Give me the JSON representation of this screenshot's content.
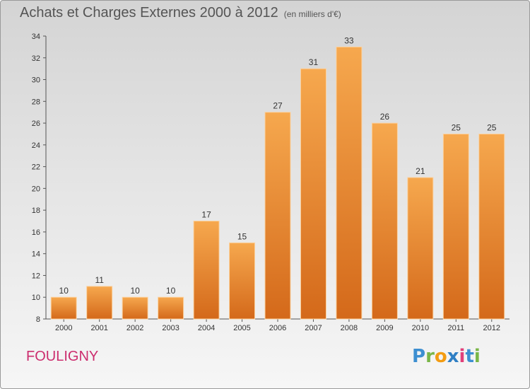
{
  "title": "Achats et Charges Externes 2000 à 2012",
  "subtitle": "(en milliers d'€)",
  "city": "FOULIGNY",
  "logo": {
    "letters": [
      "P",
      "r",
      "o",
      "x",
      "i",
      "t",
      "i"
    ]
  },
  "colors": {
    "bar_light": "#f6a84e",
    "bar_dark": "#d4691a",
    "city": "#cc2d6e"
  },
  "chart_data": {
    "type": "bar",
    "title": "Achats et Charges Externes 2000 à 2012",
    "subtitle": "(en milliers d'€)",
    "categories": [
      "2000",
      "2001",
      "2002",
      "2003",
      "2004",
      "2005",
      "2006",
      "2007",
      "2008",
      "2009",
      "2010",
      "2011",
      "2012"
    ],
    "values": [
      10,
      11,
      10,
      10,
      17,
      15,
      27,
      31,
      33,
      26,
      21,
      25,
      25
    ],
    "ylim": [
      8,
      34
    ],
    "yticks": [
      8,
      10,
      12,
      14,
      16,
      18,
      20,
      22,
      24,
      26,
      28,
      30,
      32,
      34
    ],
    "grid": false,
    "data_labels": true
  }
}
